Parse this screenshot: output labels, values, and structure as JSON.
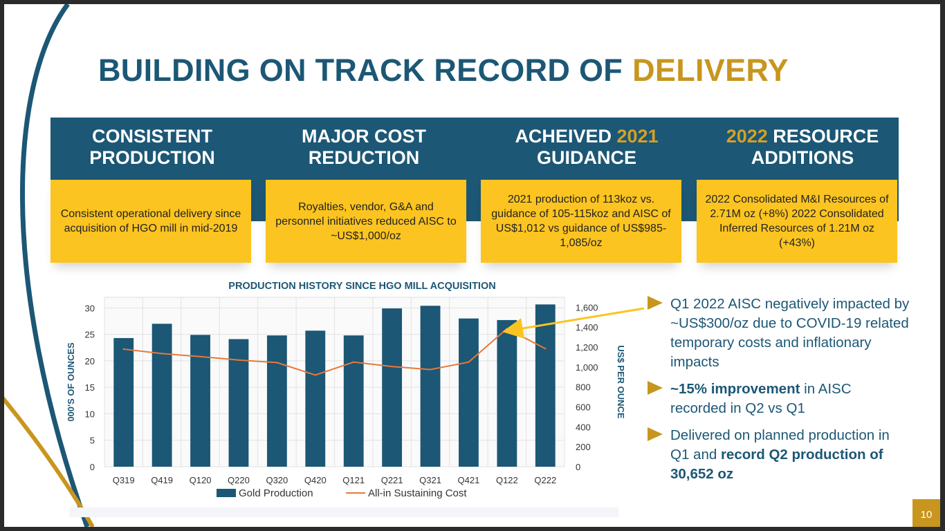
{
  "slide": {
    "title_main": "BUILDING ON TRACK RECORD OF",
    "title_accent": "DELIVERY",
    "page_number": "10"
  },
  "columns": [
    {
      "head_line1": "CONSISTENT",
      "head_line2": "PRODUCTION",
      "body": "Consistent operational delivery since acquisition of HGO mill in mid-2019"
    },
    {
      "head_line1": "MAJOR COST",
      "head_line2": "REDUCTION",
      "body": "Royalties, vendor, G&A and personnel initiatives reduced AISC to ~US$1,000/oz"
    },
    {
      "head_line1_pre": "ACHEIVED ",
      "head_line1_accent": "2021",
      "head_line2": "GUIDANCE",
      "body": "2021 production of 113koz vs. guidance of 105-115koz and AISC of US$1,012 vs guidance of US$985-1,085/oz"
    },
    {
      "head_line1_accent": "2022",
      "head_line1_post": " RESOURCE",
      "head_line2": "ADDITIONS",
      "body": "2022 Consolidated M&I Resources of 2.71M oz (+8%) 2022 Consolidated Inferred Resources of 1.21M oz (+43%)"
    }
  ],
  "bullets": [
    {
      "text": "Q1 2022 AISC negatively impacted by ~US$300/oz due to COVID-19 related temporary costs and inflationary impacts"
    },
    {
      "bold": "~15% improvement",
      "text": " in AISC recorded in Q2 vs Q1"
    },
    {
      "text": "Delivered on planned production in Q1 and ",
      "bold": "record Q2 production of 30,652 oz"
    }
  ],
  "colors": {
    "navy": "#1c5775",
    "gold": "#c8961e",
    "yellow": "#fcc420",
    "line": "#e8783a"
  },
  "chart_data": {
    "type": "bar",
    "title": "PRODUCTION HISTORY SINCE HGO MILL ACQUISITION",
    "categories": [
      "Q319",
      "Q419",
      "Q120",
      "Q220",
      "Q320",
      "Q420",
      "Q121",
      "Q221",
      "Q321",
      "Q421",
      "Q122",
      "Q222"
    ],
    "series": [
      {
        "name": "Gold Production",
        "type": "bar",
        "axis": "left",
        "color": "#1c5775",
        "values": [
          24.3,
          27.0,
          24.9,
          24.1,
          24.8,
          25.7,
          24.8,
          29.9,
          30.4,
          28.0,
          27.7,
          30.652
        ]
      },
      {
        "name": "All-in Sustaining Cost",
        "type": "line",
        "axis": "right",
        "color": "#e8783a",
        "values": [
          1180,
          1135,
          1105,
          1070,
          1045,
          920,
          1050,
          1005,
          975,
          1050,
          1385,
          1185
        ]
      }
    ],
    "ylabel": "000'S OF OUNCES",
    "y2label": "US$ PER OUNCE",
    "ylim": [
      0,
      32
    ],
    "y2lim": [
      0,
      1700
    ],
    "yticks": [
      "0",
      "5",
      "10",
      "15",
      "20",
      "25",
      "30"
    ],
    "y2ticks": [
      "0",
      "200",
      "400",
      "600",
      "800",
      "1,000",
      "1,200",
      "1,400",
      "1,600"
    ],
    "grid": true,
    "legend": "bottom",
    "annotation": {
      "from": "Q122",
      "note": "arrow from Q1 2022 AISC point to first bullet"
    }
  }
}
